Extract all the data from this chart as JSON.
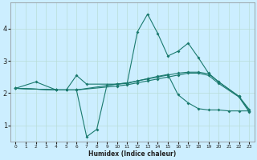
{
  "xlabel": "Humidex (Indice chaleur)",
  "ylabel": "",
  "bg_color": "#cceeff",
  "line_color": "#1a7a6e",
  "grid_color": "#b8ddd8",
  "xlim": [
    -0.5,
    23.5
  ],
  "ylim": [
    0.5,
    4.8
  ],
  "xticks": [
    0,
    1,
    2,
    3,
    4,
    5,
    6,
    7,
    8,
    9,
    10,
    11,
    12,
    13,
    14,
    15,
    16,
    17,
    18,
    19,
    20,
    21,
    22,
    23
  ],
  "yticks": [
    1,
    2,
    3,
    4
  ],
  "lines": [
    {
      "x": [
        0,
        2,
        4,
        5,
        6,
        7,
        10,
        11,
        12,
        13,
        14,
        15,
        16,
        17,
        18,
        19,
        20,
        22,
        23
      ],
      "y": [
        2.15,
        2.35,
        2.1,
        2.1,
        2.55,
        2.28,
        2.28,
        2.32,
        3.9,
        4.45,
        3.85,
        3.15,
        3.3,
        3.55,
        3.1,
        2.62,
        2.35,
        1.9,
        1.5
      ]
    },
    {
      "x": [
        0,
        4,
        5,
        6,
        7,
        8,
        9,
        10,
        11,
        12,
        13,
        14,
        15,
        16,
        17,
        18,
        19,
        20,
        21,
        22,
        23
      ],
      "y": [
        2.15,
        2.1,
        2.1,
        2.1,
        0.65,
        0.88,
        2.25,
        2.28,
        2.3,
        2.38,
        2.45,
        2.52,
        2.58,
        1.95,
        1.7,
        1.52,
        1.48,
        1.48,
        1.45,
        1.45,
        1.45
      ]
    },
    {
      "x": [
        0,
        4,
        5,
        6,
        10,
        11,
        12,
        13,
        14,
        15,
        16,
        17,
        18,
        19,
        20,
        22,
        23
      ],
      "y": [
        2.15,
        2.1,
        2.1,
        2.1,
        2.28,
        2.32,
        2.38,
        2.44,
        2.5,
        2.56,
        2.62,
        2.65,
        2.65,
        2.6,
        2.35,
        1.9,
        1.45
      ]
    },
    {
      "x": [
        0,
        4,
        5,
        6,
        10,
        11,
        12,
        13,
        14,
        15,
        16,
        17,
        18,
        19,
        20,
        22,
        23
      ],
      "y": [
        2.15,
        2.1,
        2.1,
        2.1,
        2.22,
        2.26,
        2.32,
        2.38,
        2.44,
        2.5,
        2.56,
        2.62,
        2.62,
        2.55,
        2.3,
        1.88,
        1.42
      ]
    }
  ]
}
